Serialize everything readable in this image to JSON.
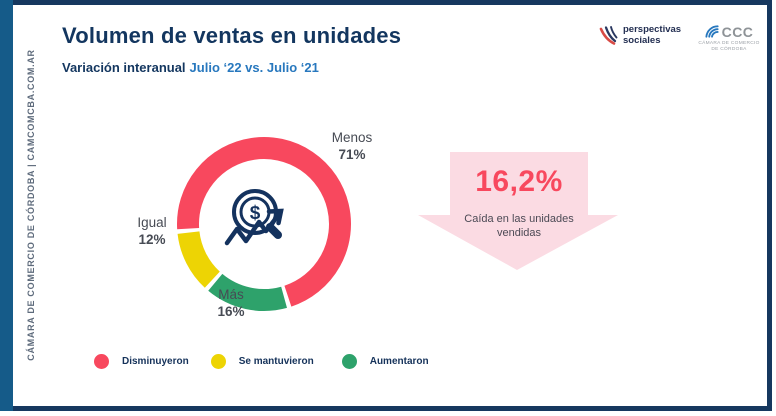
{
  "page": {
    "title": "Volumen de ventas en unidades",
    "subtitle_label": "Variación interanual",
    "subtitle_period": "Julio ‘22 vs. Julio ‘21",
    "sidebar_text": "CÁMARA DE COMERCIO DE CÓRDOBA | CAMCOMCBA.COM.AR"
  },
  "logos": {
    "perspectivas": {
      "line1": "perspectivas",
      "line2": "sociales"
    },
    "ccc": {
      "acronym": "CCC",
      "caption_line1": "CÁMARA DE COMERCIO",
      "caption_line2": "DE CÓRDOBA"
    }
  },
  "chart_data": {
    "type": "pie",
    "donut": true,
    "title": "Volumen de ventas en unidades",
    "subtitle": "Variación interanual Julio ‘22 vs. Julio ‘21",
    "start_angle_deg": 265,
    "gap_deg": 3,
    "segments": [
      {
        "label": "Menos",
        "value": 71,
        "color": "#f8485e",
        "legend": "Disminuyeron"
      },
      {
        "label": "Más",
        "value": 16,
        "color": "#2ea26b",
        "legend": "Aumentaron"
      },
      {
        "label": "Igual",
        "value": 12,
        "color": "#edd404",
        "legend": "Se mantuvieron"
      }
    ],
    "highlight": {
      "value_pct": 16.2,
      "text": "Caída en las unidades vendidas"
    },
    "legend_position": "bottom-left"
  },
  "labels": {
    "menos": {
      "name": "Menos",
      "pct": "71%"
    },
    "igual": {
      "name": "Igual",
      "pct": "12%"
    },
    "mas": {
      "name": "Más",
      "pct": "16%"
    }
  },
  "highlight": {
    "value": "16,2%",
    "caption_line1": "Caída en las unidades",
    "caption_line2": "vendidas",
    "bg_color": "#fbdbe3",
    "value_color": "#f8485e"
  },
  "legend": [
    {
      "label": "Disminuyeron",
      "color": "#f8485e"
    },
    {
      "label": "Se mantuvieron",
      "color": "#edd404"
    },
    {
      "label": "Aumentaron",
      "color": "#2ea26b"
    }
  ]
}
